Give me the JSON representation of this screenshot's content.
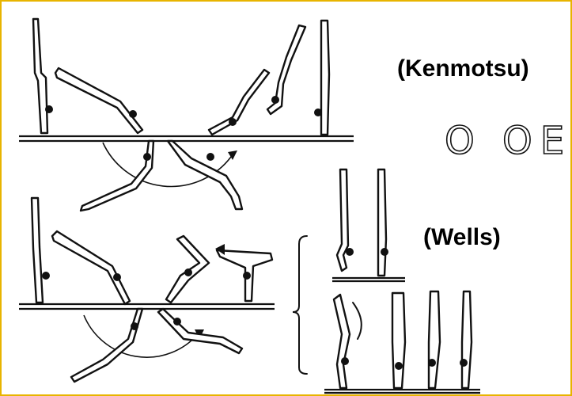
{
  "labels": {
    "kenmotsu": "(Kenmotsu)",
    "wells": "(Wells)",
    "score_mark": "O OE"
  },
  "colors": {
    "frame": "#e8b400",
    "ink": "#111111",
    "background": "#ffffff"
  }
}
